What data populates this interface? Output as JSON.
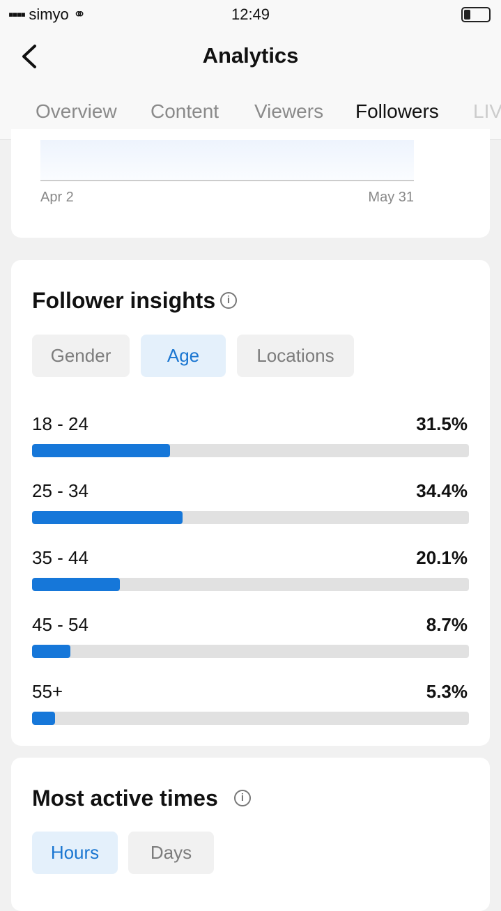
{
  "status_bar": {
    "carrier": "simyo",
    "time": "12:49"
  },
  "header": {
    "title": "Analytics"
  },
  "tabs": [
    "Overview",
    "Content",
    "Viewers",
    "Followers",
    "LIV"
  ],
  "trend_card": {
    "x_start": "Apr 2",
    "x_end": "May 31"
  },
  "follower_insights": {
    "title": "Follower insights",
    "filters": [
      "Gender",
      "Age",
      "Locations"
    ],
    "age_chart": {
      "type": "bar",
      "categories": [
        "18 - 24",
        "25 - 34",
        "35 - 44",
        "45 - 54",
        "55+"
      ],
      "values": [
        31.5,
        34.4,
        20.1,
        8.7,
        5.3
      ],
      "value_labels": [
        "31.5%",
        "34.4%",
        "20.1%",
        "8.7%",
        "5.3%"
      ],
      "xlim": [
        0,
        100
      ],
      "color": "#1677d9"
    }
  },
  "most_active_times": {
    "title": "Most active times",
    "filters": [
      "Hours",
      "Days"
    ]
  }
}
